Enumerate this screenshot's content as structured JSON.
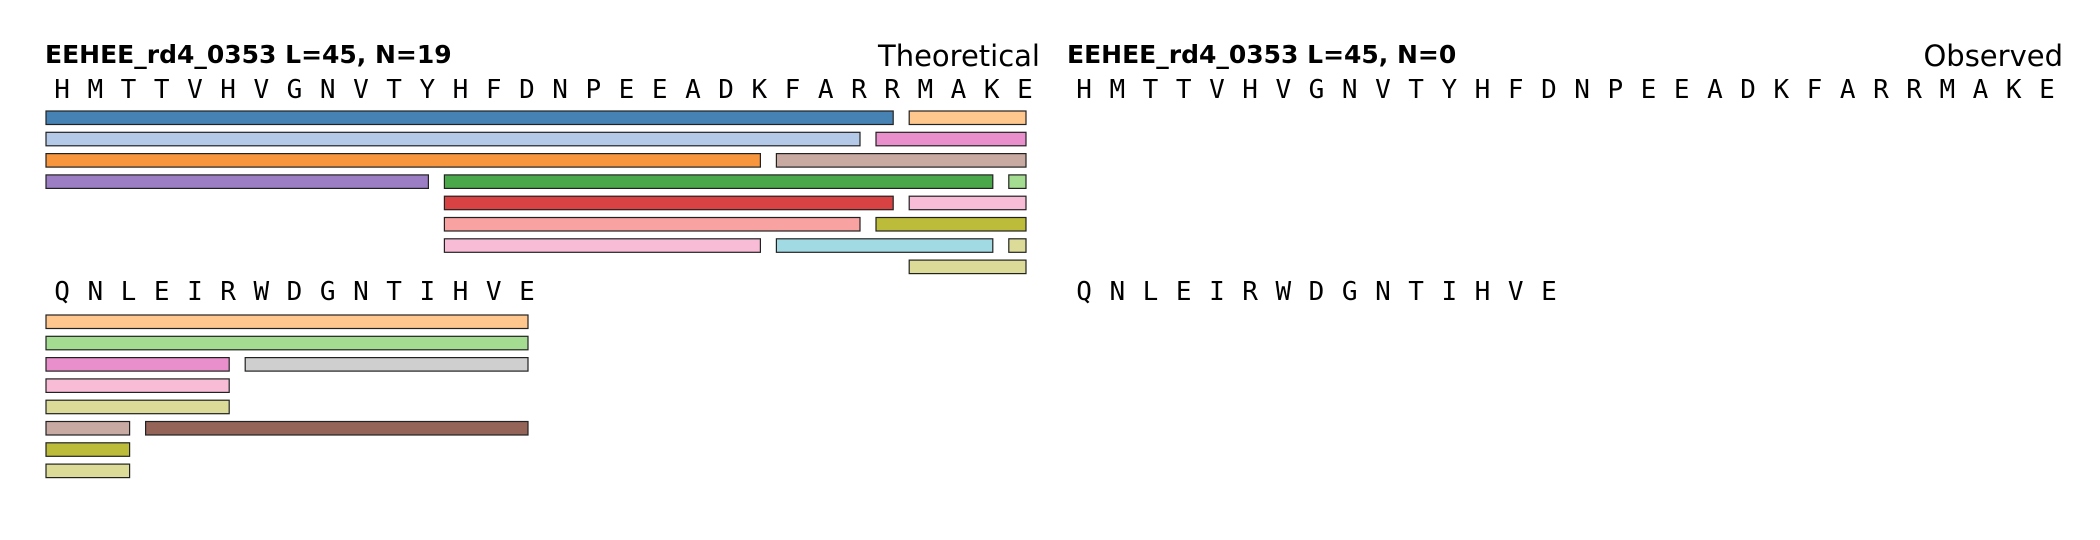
{
  "panels": [
    {
      "title": "EEHEE_rd4_0353  L=45, N=19",
      "label": "Theoretical",
      "rows": [
        {
          "residues": [
            "H",
            "M",
            "T",
            "T",
            "V",
            "H",
            "V",
            "G",
            "N",
            "V",
            "T",
            "Y",
            "H",
            "F",
            "D",
            "N",
            "P",
            "E",
            "E",
            "A",
            "D",
            "K",
            "F",
            "A",
            "R",
            "R",
            "M",
            "A",
            "K",
            "E"
          ],
          "fragments": [
            {
              "start": 1,
              "end": 26,
              "level": 0,
              "color": "#4682b4"
            },
            {
              "start": 27,
              "end": 30,
              "level": 0,
              "color": "#ffc78e"
            },
            {
              "start": 1,
              "end": 25,
              "level": 1,
              "color": "#b4c8e8"
            },
            {
              "start": 26,
              "end": 30,
              "level": 1,
              "color": "#e88fcc"
            },
            {
              "start": 1,
              "end": 22,
              "level": 2,
              "color": "#f7963c"
            },
            {
              "start": 23,
              "end": 30,
              "level": 2,
              "color": "#c9aaa2"
            },
            {
              "start": 1,
              "end": 12,
              "level": 3,
              "color": "#9c7ec4"
            },
            {
              "start": 13,
              "end": 29,
              "level": 3,
              "color": "#4aa84a"
            },
            {
              "start": 30,
              "end": 30,
              "level": 3,
              "color": "#a4dc92"
            },
            {
              "start": 13,
              "end": 26,
              "level": 4,
              "color": "#d84242"
            },
            {
              "start": 27,
              "end": 30,
              "level": 4,
              "color": "#f8bcd6"
            },
            {
              "start": 13,
              "end": 25,
              "level": 5,
              "color": "#f8a2a2"
            },
            {
              "start": 26,
              "end": 30,
              "level": 5,
              "color": "#bcbc3a"
            },
            {
              "start": 13,
              "end": 22,
              "level": 6,
              "color": "#f8bcd6"
            },
            {
              "start": 23,
              "end": 29,
              "level": 6,
              "color": "#a2dae4"
            },
            {
              "start": 30,
              "end": 30,
              "level": 6,
              "color": "#dcdc98"
            },
            {
              "start": 27,
              "end": 30,
              "level": 7,
              "color": "#dcdc98"
            }
          ]
        },
        {
          "residues": [
            "Q",
            "N",
            "L",
            "E",
            "I",
            "R",
            "W",
            "D",
            "G",
            "N",
            "T",
            "I",
            "H",
            "V",
            "E"
          ],
          "fragments": [
            {
              "start": 1,
              "end": 15,
              "level": 0,
              "color": "#ffc78e"
            },
            {
              "start": 1,
              "end": 15,
              "level": 1,
              "color": "#a4dc92"
            },
            {
              "start": 1,
              "end": 6,
              "level": 2,
              "color": "#e88fcc"
            },
            {
              "start": 7,
              "end": 15,
              "level": 2,
              "color": "#cfcfcf"
            },
            {
              "start": 1,
              "end": 6,
              "level": 3,
              "color": "#f8bcd6"
            },
            {
              "start": 1,
              "end": 6,
              "level": 4,
              "color": "#dcdc98"
            },
            {
              "start": 1,
              "end": 3,
              "level": 5,
              "color": "#c9aaa2"
            },
            {
              "start": 4,
              "end": 15,
              "level": 5,
              "color": "#946459"
            },
            {
              "start": 1,
              "end": 3,
              "level": 6,
              "color": "#bcbc3a"
            },
            {
              "start": 1,
              "end": 3,
              "level": 7,
              "color": "#dcdc98"
            }
          ]
        }
      ]
    },
    {
      "title": "EEHEE_rd4_0353  L=45, N=0",
      "label": "Observed",
      "rows": [
        {
          "residues": [
            "H",
            "M",
            "T",
            "T",
            "V",
            "H",
            "V",
            "G",
            "N",
            "V",
            "T",
            "Y",
            "H",
            "F",
            "D",
            "N",
            "P",
            "E",
            "E",
            "A",
            "D",
            "K",
            "F",
            "A",
            "R",
            "R",
            "M",
            "A",
            "K",
            "E"
          ],
          "fragments": []
        },
        {
          "residues": [
            "Q",
            "N",
            "L",
            "E",
            "I",
            "R",
            "W",
            "D",
            "G",
            "N",
            "T",
            "I",
            "H",
            "V",
            "E"
          ],
          "fragments": []
        }
      ]
    }
  ]
}
